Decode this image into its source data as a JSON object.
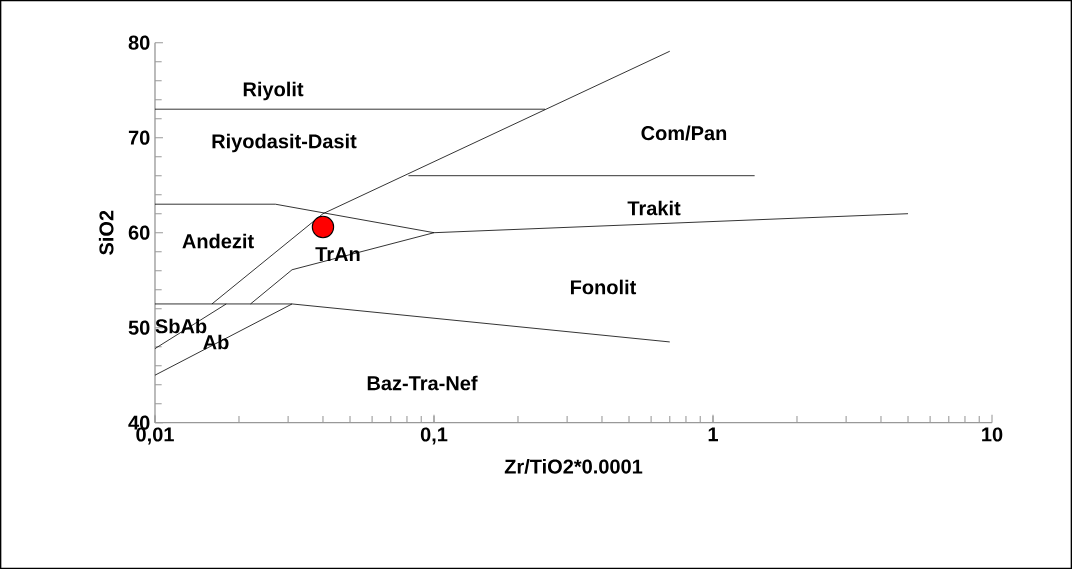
{
  "chart_data": {
    "type": "scatter",
    "xlabel": "Zr/TiO2*0.0001",
    "ylabel": "SiO2",
    "log": "x",
    "grid": false,
    "xlim": [
      0.01,
      10
    ],
    "ylim": [
      40,
      80
    ],
    "xticks": [
      {
        "value": 0.01,
        "label": "0,01"
      },
      {
        "value": 0.1,
        "label": "0,1"
      },
      1,
      10
    ],
    "yticks": [
      40,
      50,
      60,
      70,
      80
    ],
    "series": [
      {
        "type": "line",
        "color": "#000000",
        "x": [
          0.01,
          0.25
        ],
        "values": [
          73,
          73
        ]
      },
      {
        "type": "line",
        "color": "#000000",
        "x": [
          0.016,
          0.04,
          0.7
        ],
        "values": [
          52.5,
          62,
          79.1
        ]
      },
      {
        "type": "line",
        "color": "#000000",
        "x": [
          0.081,
          1.41
        ],
        "values": [
          66,
          66
        ]
      },
      {
        "type": "line",
        "color": "#000000",
        "x": [
          0.01,
          0.027,
          0.1,
          5
        ],
        "values": [
          63,
          63,
          60,
          62
        ]
      },
      {
        "type": "line",
        "color": "#000000",
        "x": [
          0.022,
          0.031,
          0.1
        ],
        "values": [
          52.5,
          56.1,
          60
        ]
      },
      {
        "type": "line",
        "color": "#000000",
        "x": [
          0.01,
          0.031,
          0.7
        ],
        "values": [
          52.5,
          52.5,
          48.5
        ]
      },
      {
        "type": "line",
        "color": "#000000",
        "x": [
          0.01,
          0.018
        ],
        "values": [
          47.8,
          52.5
        ]
      },
      {
        "type": "line",
        "color": "#000000",
        "x": [
          0.01,
          0.031
        ],
        "values": [
          45,
          52.5
        ]
      },
      {
        "color": "#ff0000",
        "x": [
          0.04
        ],
        "values": [
          60.6
        ]
      }
    ],
    "annotations": [
      "Riyolit",
      "Riyodasit-Dasit",
      "Com/Pan",
      "Andezit",
      "Trakit",
      "TrAn",
      "Fonolit",
      "SbAb",
      "Ab",
      "Baz-Tra-Nef"
    ]
  }
}
